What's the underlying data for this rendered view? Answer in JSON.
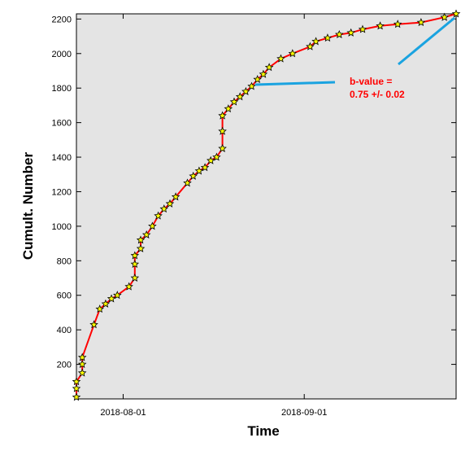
{
  "chart_data": {
    "type": "line",
    "xlabel": "Time",
    "ylabel": "Cumult. Number",
    "x_tick_labels": [
      "2018-08-01",
      "2018-09-01"
    ],
    "x_ticks": [
      "2018-08-01",
      "2018-09-01"
    ],
    "xlim": [
      "2018-07-24",
      "2018-09-27"
    ],
    "ylim": [
      0,
      2230
    ],
    "y_ticks": [
      200,
      400,
      600,
      800,
      1000,
      1200,
      1400,
      1600,
      1800,
      2000,
      2200
    ],
    "grid": false,
    "background_color": "#e4e4e4",
    "line_color": "#ff0000",
    "marker_fill": "#ffff00",
    "marker_stroke": "#000000",
    "marker_shape": "star",
    "series": [
      {
        "x": [
          "2018-07-24",
          "2018-07-24",
          "2018-07-24",
          "2018-07-25",
          "2018-07-25",
          "2018-07-25",
          "2018-07-27",
          "2018-07-28",
          "2018-07-29",
          "2018-07-30",
          "2018-07-31",
          "2018-08-02",
          "2018-08-03",
          "2018-08-03",
          "2018-08-03",
          "2018-08-04",
          "2018-08-04",
          "2018-08-05",
          "2018-08-06",
          "2018-08-07",
          "2018-08-08",
          "2018-08-09",
          "2018-08-10",
          "2018-08-12",
          "2018-08-13",
          "2018-08-14",
          "2018-08-15",
          "2018-08-16",
          "2018-08-17",
          "2018-08-18",
          "2018-08-18",
          "2018-08-18",
          "2018-08-19",
          "2018-08-20",
          "2018-08-21",
          "2018-08-22",
          "2018-08-23",
          "2018-08-24",
          "2018-08-25",
          "2018-08-26",
          "2018-08-28",
          "2018-08-30",
          "2018-09-02",
          "2018-09-03",
          "2018-09-05",
          "2018-09-07",
          "2018-09-09",
          "2018-09-11",
          "2018-09-14",
          "2018-09-17",
          "2018-09-21",
          "2018-09-25",
          "2018-09-27"
        ],
        "y": [
          10,
          60,
          100,
          150,
          200,
          240,
          430,
          520,
          550,
          580,
          600,
          650,
          700,
          780,
          830,
          870,
          920,
          950,
          1000,
          1060,
          1100,
          1130,
          1170,
          1250,
          1290,
          1320,
          1340,
          1380,
          1400,
          1450,
          1550,
          1640,
          1680,
          1720,
          1750,
          1780,
          1810,
          1850,
          1880,
          1920,
          1970,
          2000,
          2040,
          2070,
          2090,
          2110,
          2120,
          2140,
          2160,
          2170,
          2180,
          2210,
          2230
        ]
      }
    ],
    "annotation": {
      "lines": [
        "b-value =",
        "0.75 +/- 0.02"
      ],
      "color": "#ff0000",
      "pointer_color": "#1aa3e0"
    }
  }
}
